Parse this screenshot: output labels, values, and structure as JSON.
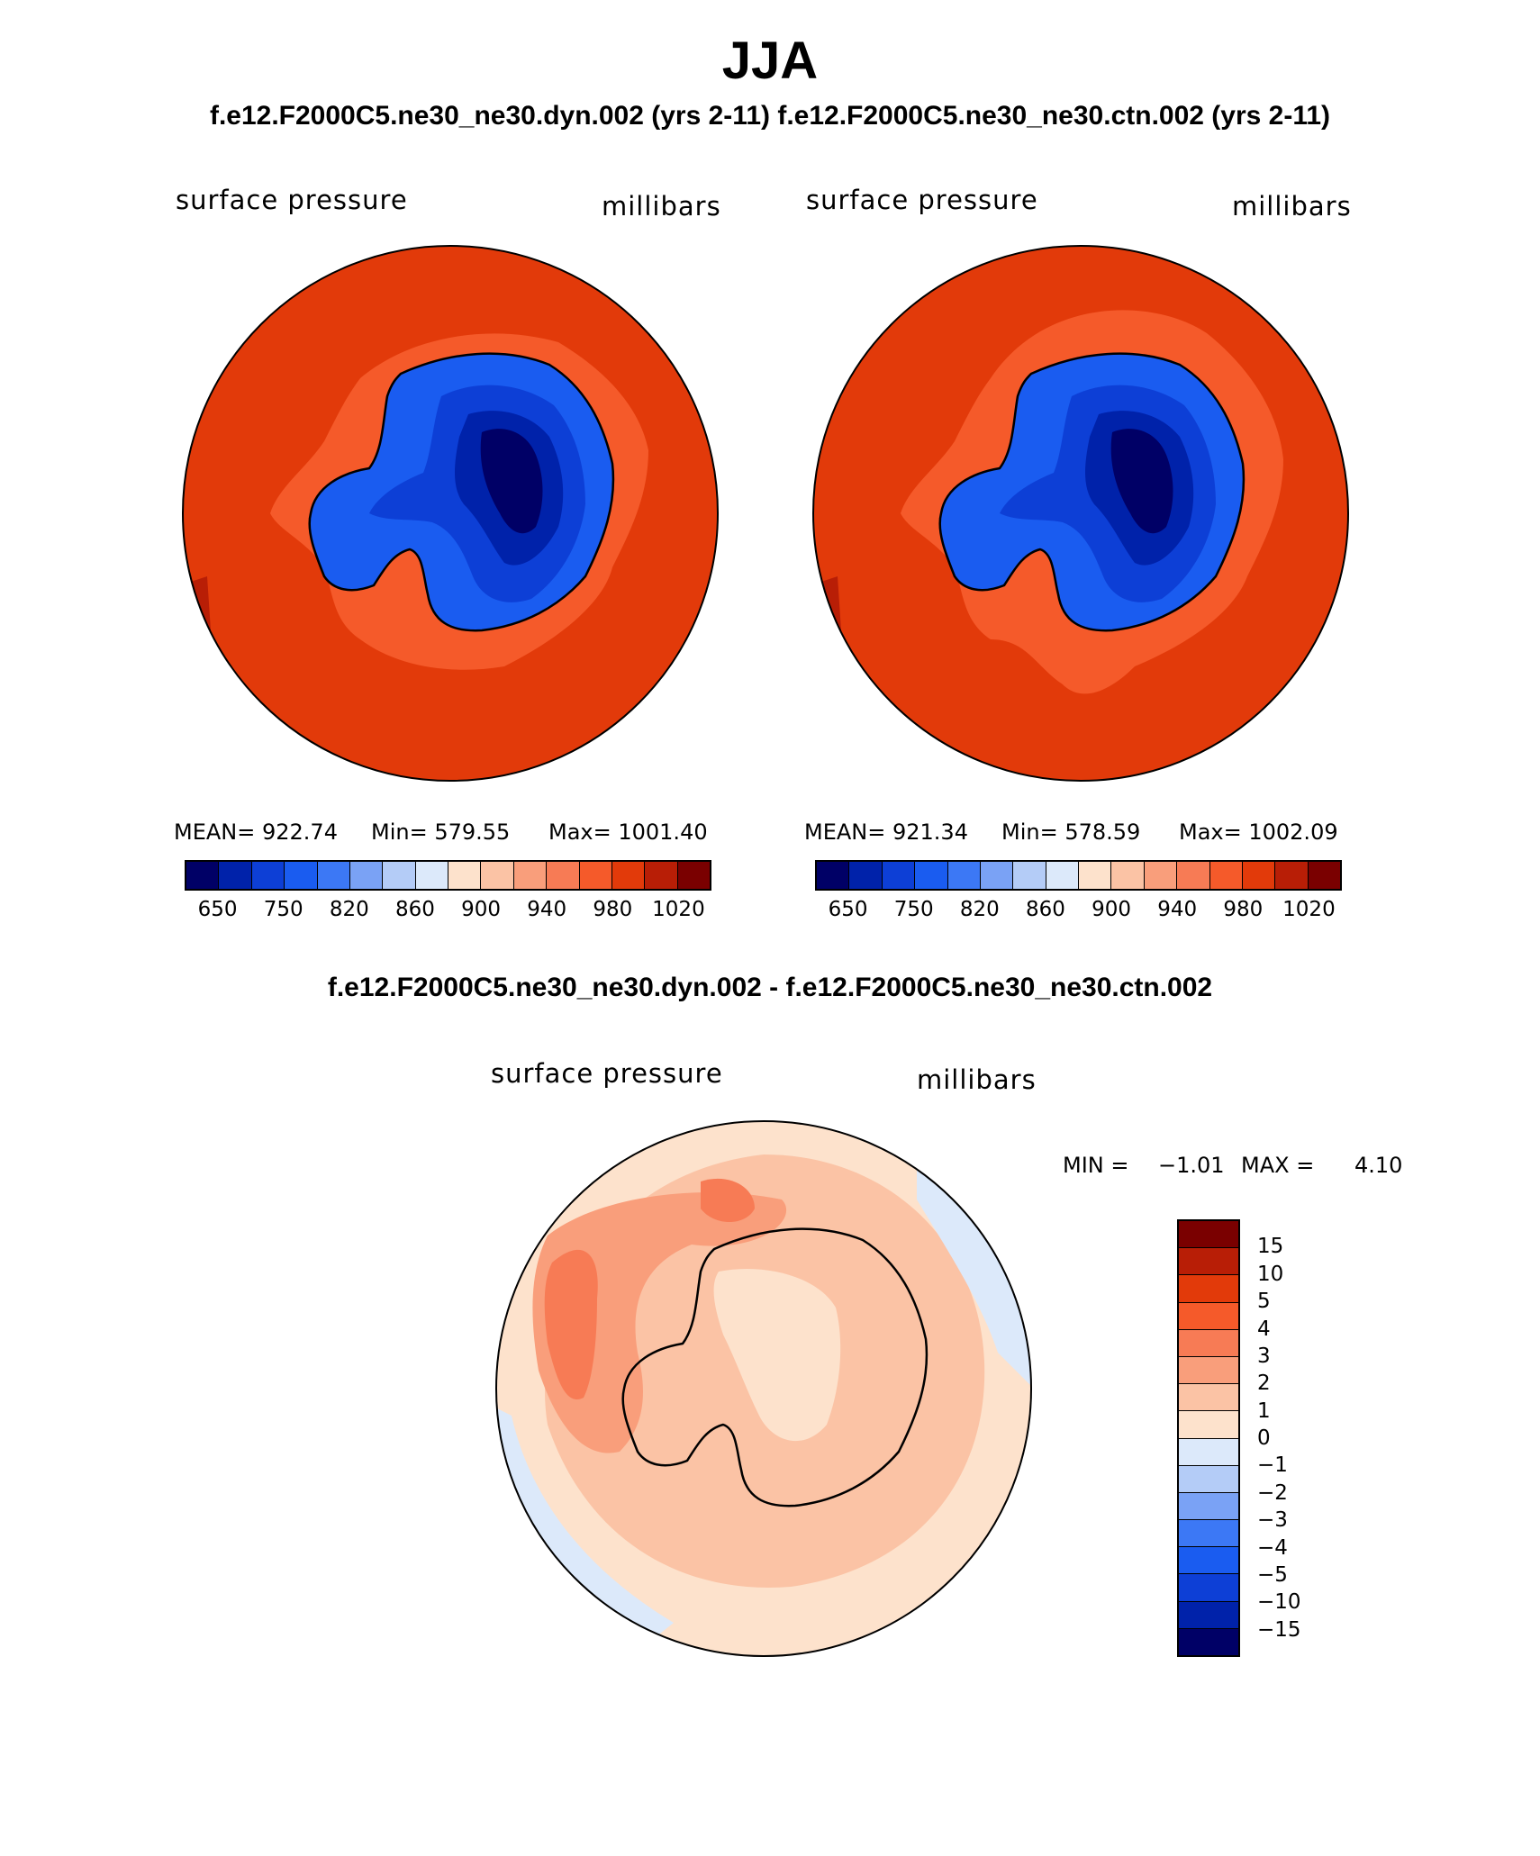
{
  "figure": {
    "title": "JJA",
    "subtitle": "f.e12.F2000C5.ne30_ne30.dyn.002 (yrs 2-11)  f.e12.F2000C5.ne30_ne30.ctn.002 (yrs 2-11)",
    "diff_title": "f.e12.F2000C5.ne30_ne30.dyn.002 - f.e12.F2000C5.ne30_ne30.ctn.002"
  },
  "panels": [
    {
      "variable": "surface pressure",
      "units": "millibars",
      "mean_label": "MEAN= 922.74",
      "min_label": "Min= 579.55",
      "max_label": "Max= 1001.40"
    },
    {
      "variable": "surface pressure",
      "units": "millibars",
      "mean_label": "MEAN= 921.34",
      "min_label": "Min= 578.59",
      "max_label": "Max= 1002.09"
    }
  ],
  "diff_panel": {
    "variable": "surface pressure",
    "units": "millibars",
    "min_label": "MIN =",
    "min_value": "−1.01",
    "max_label": "MAX =",
    "max_value": "4.10"
  },
  "colorbar_abs": {
    "tick_labels": [
      "650",
      "750",
      "820",
      "860",
      "900",
      "940",
      "980",
      "1020"
    ],
    "colors": [
      "#000066",
      "#0022aa",
      "#0d3fd6",
      "#1a5cf0",
      "#3c78f5",
      "#7aa2f5",
      "#b4ccf7",
      "#dce9fa",
      "#fde2cc",
      "#fbc3a5",
      "#f99e7b",
      "#f77b55",
      "#f55a2a",
      "#e23a0a",
      "#b81e06",
      "#7a0000"
    ]
  },
  "colorbar_diff": {
    "tick_labels": [
      "15",
      "10",
      "5",
      "4",
      "3",
      "2",
      "1",
      "0",
      "−1",
      "−2",
      "−3",
      "−4",
      "−5",
      "−10",
      "−15"
    ],
    "colors": [
      "#7a0000",
      "#b81e06",
      "#e23a0a",
      "#f55a2a",
      "#f77b55",
      "#f99e7b",
      "#fbc3a5",
      "#fde2cc",
      "#dce9fa",
      "#b4ccf7",
      "#7aa2f5",
      "#3c78f5",
      "#1a5cf0",
      "#0d3fd6",
      "#0022aa",
      "#000066"
    ]
  },
  "map_colors": {
    "ocean_abs": "#e23a0a",
    "ring_abs": "#f55a2a",
    "ridge_abs": "#b81e06",
    "ice_l1": "#1a5cf0",
    "ice_l2": "#0d3fd6",
    "ice_l3": "#0022aa",
    "ice_core": "#000066",
    "diff_base": "#fbc3a5",
    "diff_pale": "#fde2cc",
    "diff_mid": "#f99e7b",
    "diff_hot": "#f77b55",
    "diff_blue": "#dce9fa"
  }
}
